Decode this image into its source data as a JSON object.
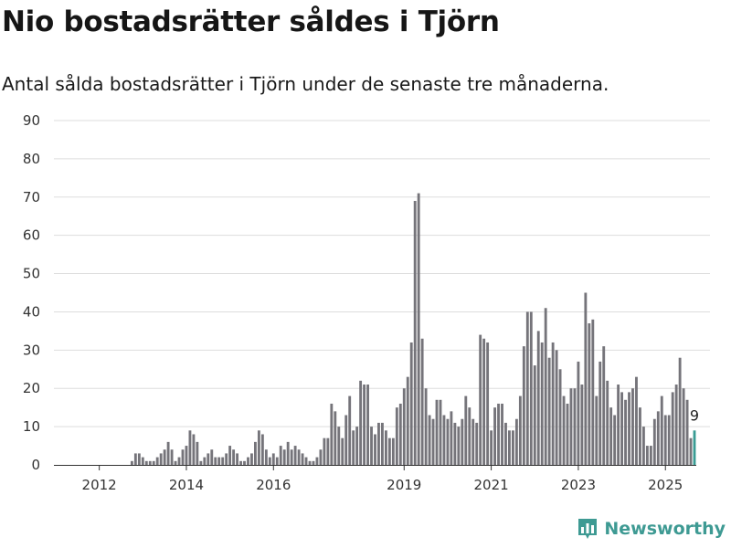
{
  "title": "Nio bostadsrätter såldes i Tjörn",
  "subtitle": "Antal sålda bostadsrätter i Tjörn under de senaste tre månaderna.",
  "brand": {
    "name": "Newsworthy",
    "logo_icon": "bar-chart-logo-icon"
  },
  "colors": {
    "bar": "#75747a",
    "highlight": "#3a9c94",
    "grid": "#dddddd",
    "axis": "#333333"
  },
  "chart_data": {
    "type": "bar",
    "title": "Nio bostadsrätter såldes i Tjörn",
    "xlabel": "",
    "ylabel": "",
    "ylim": [
      0,
      90
    ],
    "yticks": [
      "0",
      "10",
      "20",
      "30",
      "40",
      "50",
      "60",
      "70",
      "80",
      "90"
    ],
    "grid": true,
    "x_start": "2011-01",
    "xticks": [
      {
        "label": "2012",
        "month": "2012-01"
      },
      {
        "label": "2014",
        "month": "2014-01"
      },
      {
        "label": "2016",
        "month": "2016-01"
      },
      {
        "label": "2019",
        "month": "2019-01"
      },
      {
        "label": "2021",
        "month": "2021-01"
      },
      {
        "label": "2023",
        "month": "2023-01"
      },
      {
        "label": "2025",
        "month": "2025-01"
      }
    ],
    "values": [
      0,
      0,
      0,
      0,
      0,
      0,
      0,
      0,
      0,
      0,
      0,
      0,
      0,
      0,
      0,
      0,
      0,
      0,
      0,
      0,
      0,
      1,
      3,
      3,
      2,
      1,
      1,
      1,
      2,
      3,
      4,
      6,
      4,
      1,
      2,
      4,
      5,
      9,
      8,
      6,
      1,
      2,
      3,
      4,
      2,
      2,
      2,
      3,
      5,
      4,
      3,
      1,
      1,
      2,
      3,
      6,
      9,
      8,
      4,
      2,
      3,
      2,
      5,
      4,
      6,
      4,
      5,
      4,
      3,
      2,
      1,
      1,
      2,
      4,
      7,
      7,
      16,
      14,
      10,
      7,
      13,
      18,
      9,
      10,
      22,
      21,
      21,
      10,
      8,
      11,
      11,
      9,
      7,
      7,
      15,
      16,
      20,
      23,
      32,
      69,
      71,
      33,
      20,
      13,
      12,
      17,
      17,
      13,
      12,
      14,
      11,
      10,
      12,
      18,
      15,
      12,
      11,
      34,
      33,
      32,
      9,
      15,
      16,
      16,
      11,
      9,
      9,
      12,
      18,
      31,
      40,
      40,
      26,
      35,
      32,
      41,
      28,
      32,
      30,
      25,
      18,
      16,
      20,
      20,
      27,
      21,
      45,
      37,
      38,
      18,
      27,
      31,
      22,
      15,
      13,
      21,
      19,
      17,
      19,
      20,
      23,
      15,
      10,
      5,
      5,
      12,
      14,
      18,
      13,
      13,
      19,
      21,
      28,
      20,
      17,
      7,
      9
    ],
    "highlight_last": true,
    "annotations": [
      {
        "label": "9",
        "target": "last"
      }
    ]
  }
}
